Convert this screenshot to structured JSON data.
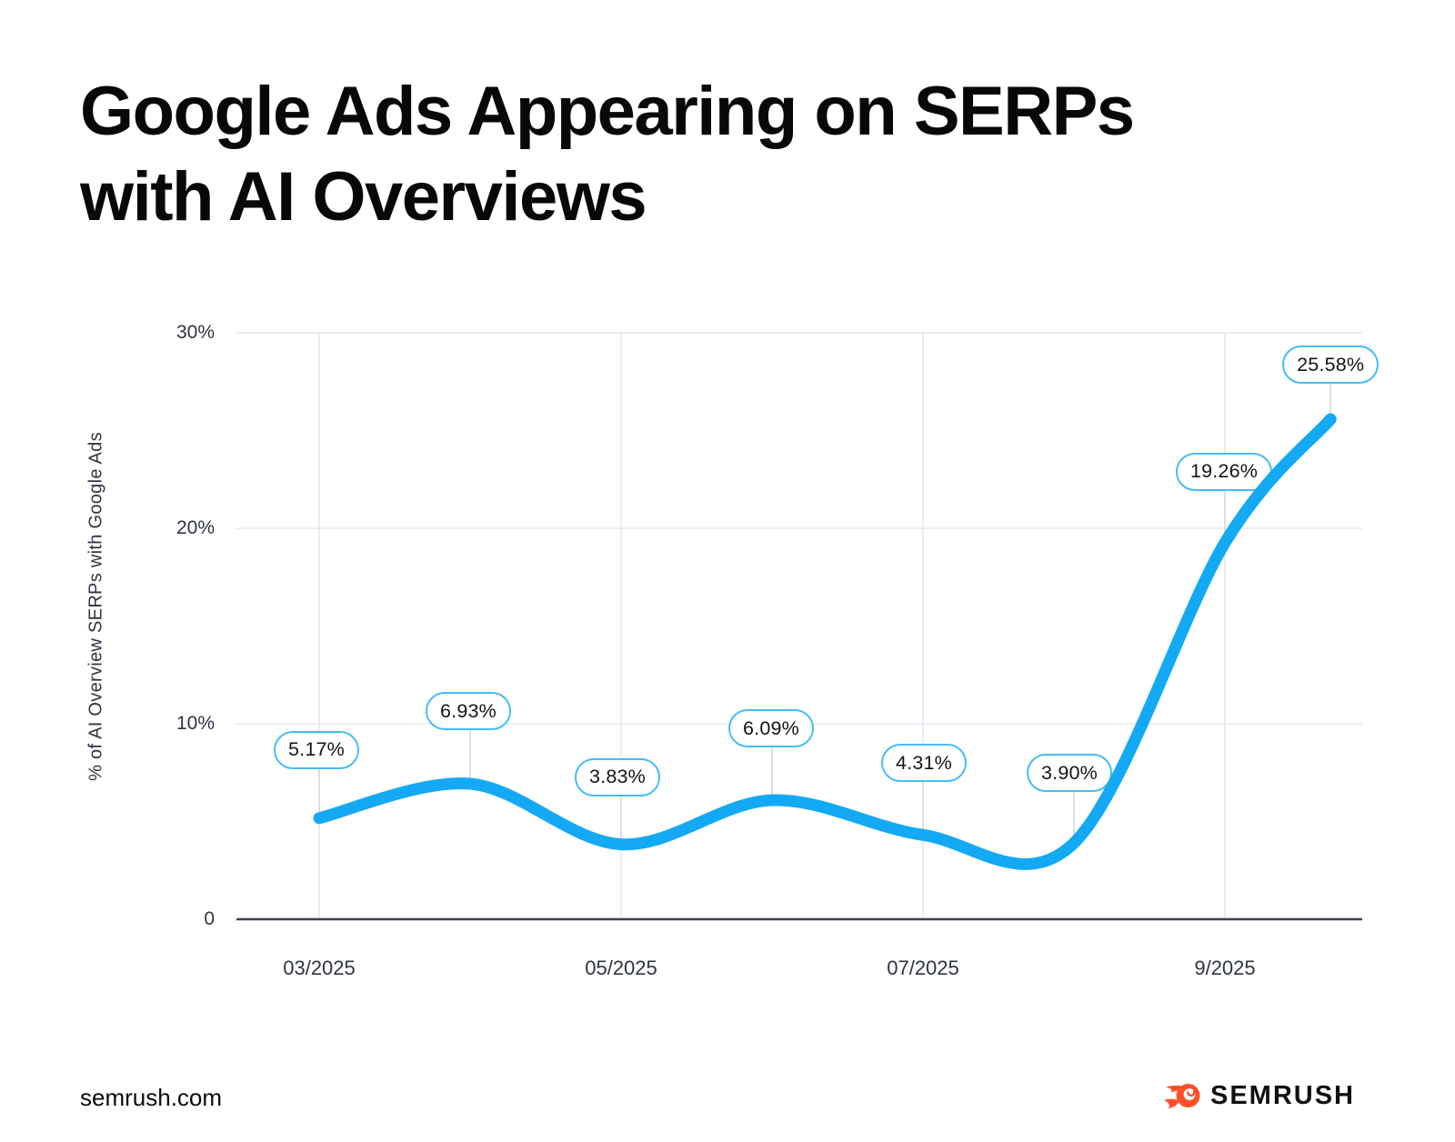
{
  "header": {
    "lines": [
      "Google Ads Appearing on SERPs",
      "with AI Overviews"
    ]
  },
  "chart_data": {
    "type": "line",
    "title": "Google Ads Appearing on SERPs with AI Overviews",
    "xlabel": "",
    "ylabel": "% of AI Overview SERPs with Google Ads",
    "ylim": [
      0,
      30
    ],
    "grid": true,
    "legend": "none",
    "y_ticks": [
      {
        "label": "30%",
        "value": 30
      },
      {
        "label": "20%",
        "value": 20
      },
      {
        "label": "10%",
        "value": 10
      },
      {
        "label": "0",
        "value": 0
      }
    ],
    "x_ticks": [
      {
        "label": "03/2025",
        "month": 3
      },
      {
        "label": "05/2025",
        "month": 5
      },
      {
        "label": "07/2025",
        "month": 7
      },
      {
        "label": "9/2025",
        "month": 9
      }
    ],
    "series": [
      {
        "name": "% of AI Overview SERPs with Google Ads",
        "color": "#14a9f4",
        "points": [
          {
            "x_month": 3,
            "value": 5.17,
            "label": "5.17%"
          },
          {
            "x_month": 4,
            "value": 6.93,
            "label": "6.93%"
          },
          {
            "x_month": 5,
            "value": 3.83,
            "label": "3.83%"
          },
          {
            "x_month": 6,
            "value": 6.09,
            "label": "6.09%"
          },
          {
            "x_month": 7,
            "value": 4.31,
            "label": "4.31%"
          },
          {
            "x_month": 8,
            "value": 3.9,
            "label": "3.90%"
          },
          {
            "x_month": 9,
            "value": 19.26,
            "label": "19.26%"
          },
          {
            "x_month": 9.7,
            "value": 25.58,
            "label": "25.58%"
          }
        ]
      }
    ]
  },
  "footer": {
    "site": "semrush.com",
    "brand": "SEMRUSH"
  },
  "colors": {
    "line": "#14a9f4",
    "pill_border": "#45bdf6",
    "grid": "#e4e8f1",
    "axis": "#3c4150",
    "connector": "#d9dfeb",
    "tick_text": "#2e3442",
    "title_text": "#08080b",
    "logo_orange": "#ff4f28"
  }
}
